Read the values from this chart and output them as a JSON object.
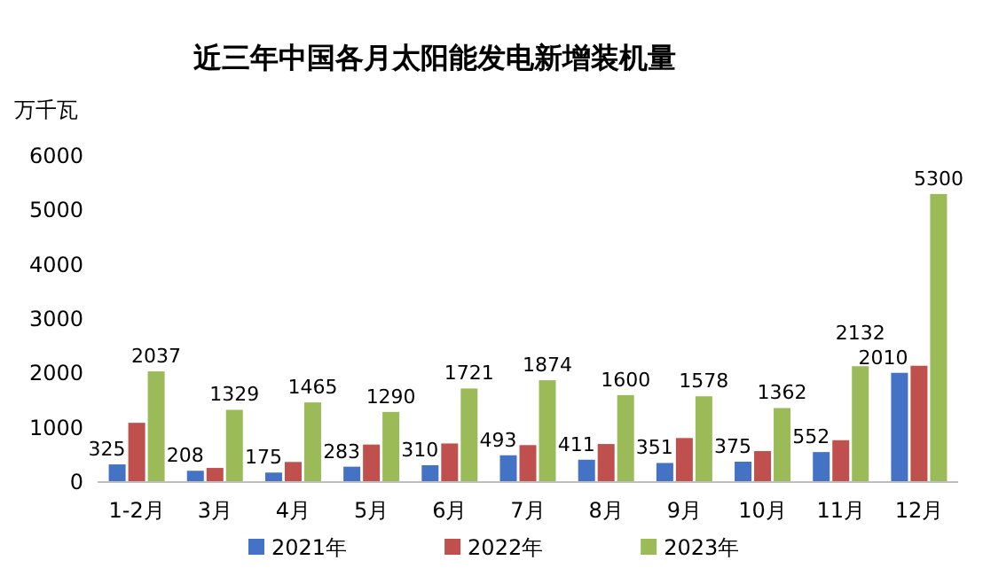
{
  "chart_data": {
    "type": "bar",
    "title": "近三年中国各月太阳能发电新增装机量",
    "ylabel": "万千瓦",
    "categories": [
      "1-2月",
      "3月",
      "4月",
      "5月",
      "6月",
      "7月",
      "8月",
      "9月",
      "10月",
      "11月",
      "12月"
    ],
    "series": [
      {
        "name": "2021年",
        "color": "#4472c4",
        "values": [
          325,
          208,
          175,
          283,
          310,
          493,
          411,
          351,
          375,
          552,
          2010
        ],
        "value_labels": [
          "325",
          "208",
          "175",
          "283",
          "310",
          "493",
          "411",
          "351",
          "375",
          "552",
          "2010"
        ]
      },
      {
        "name": "2022年",
        "color": "#c0504d",
        "values": [
          1090,
          260,
          370,
          690,
          710,
          680,
          700,
          810,
          570,
          770,
          2140
        ]
      },
      {
        "name": "2023年",
        "color": "#9bbb59",
        "values": [
          2037,
          1329,
          1465,
          1290,
          1721,
          1874,
          1600,
          1578,
          1362,
          2132,
          5300
        ],
        "value_labels": [
          "2037",
          "1329",
          "1465",
          "1290",
          "1721",
          "1874",
          "1600",
          "1578",
          "1362",
          "2132",
          "5300"
        ]
      }
    ],
    "ylim": [
      0,
      6000
    ],
    "yticks": [
      0,
      1000,
      2000,
      3000,
      4000,
      5000,
      6000
    ],
    "grid": false,
    "legend": "bottom"
  }
}
